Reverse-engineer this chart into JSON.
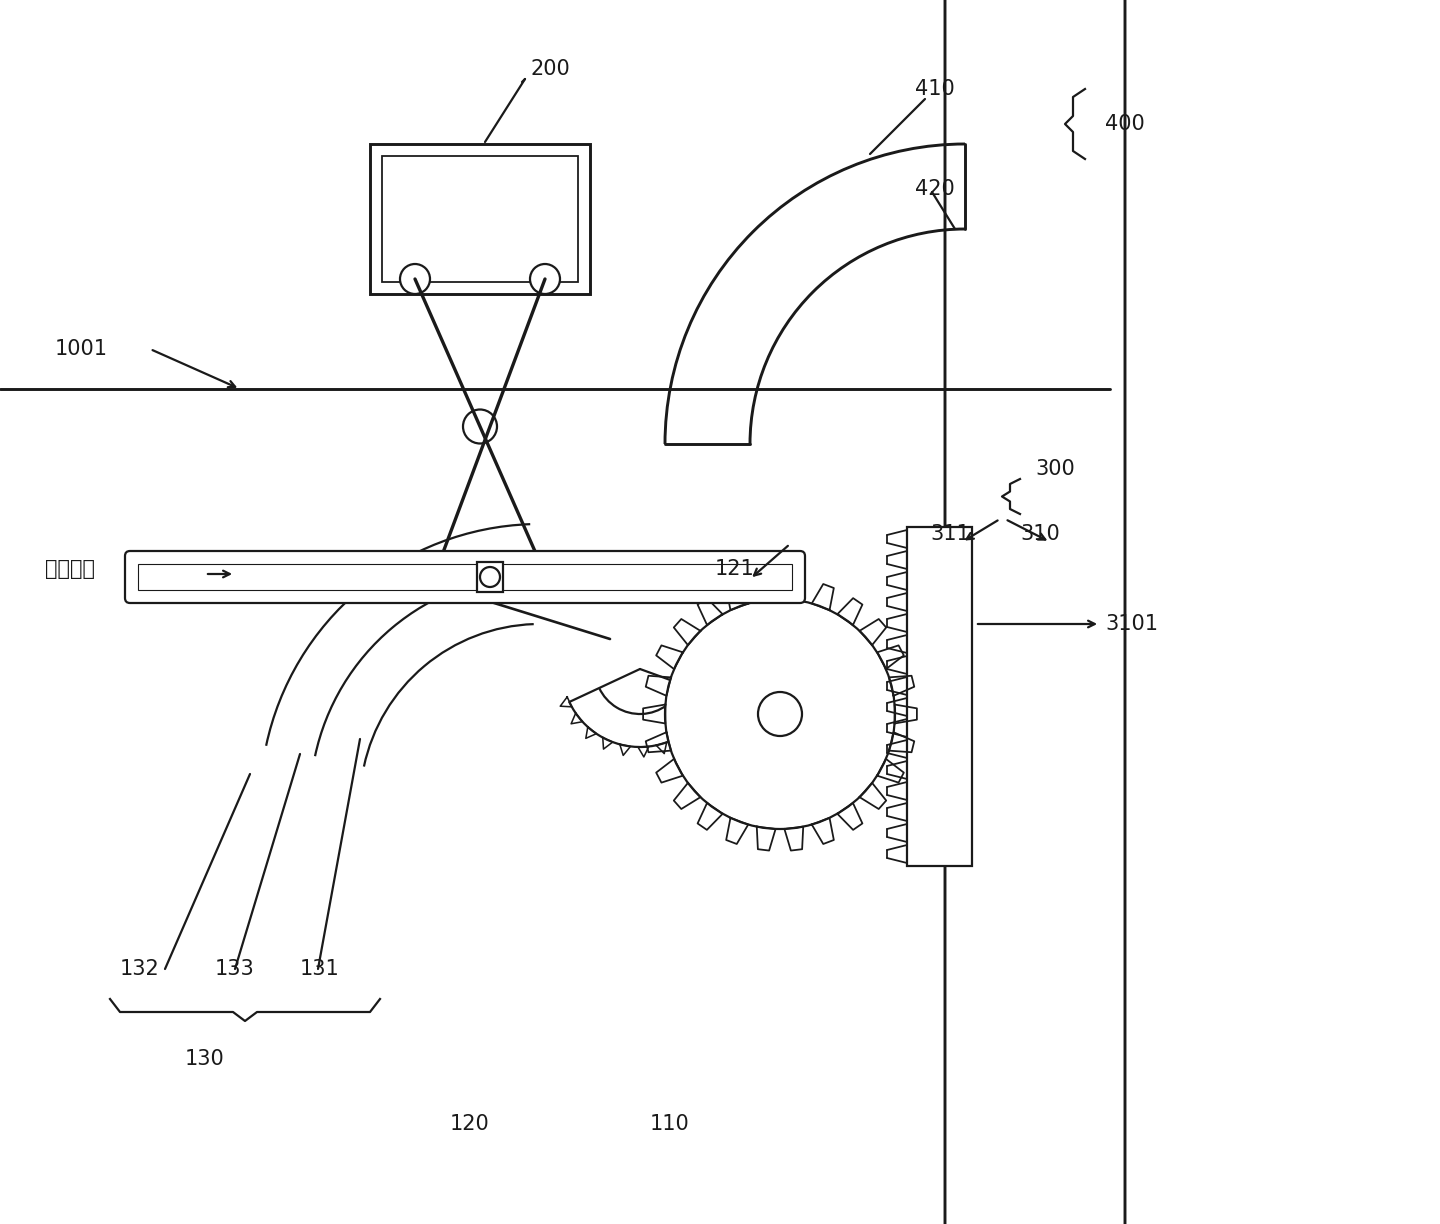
{
  "bg_color": "#ffffff",
  "line_color": "#1a1a1a",
  "lw": 1.6,
  "figsize": [
    14.4,
    12.24
  ],
  "dpi": 100
}
